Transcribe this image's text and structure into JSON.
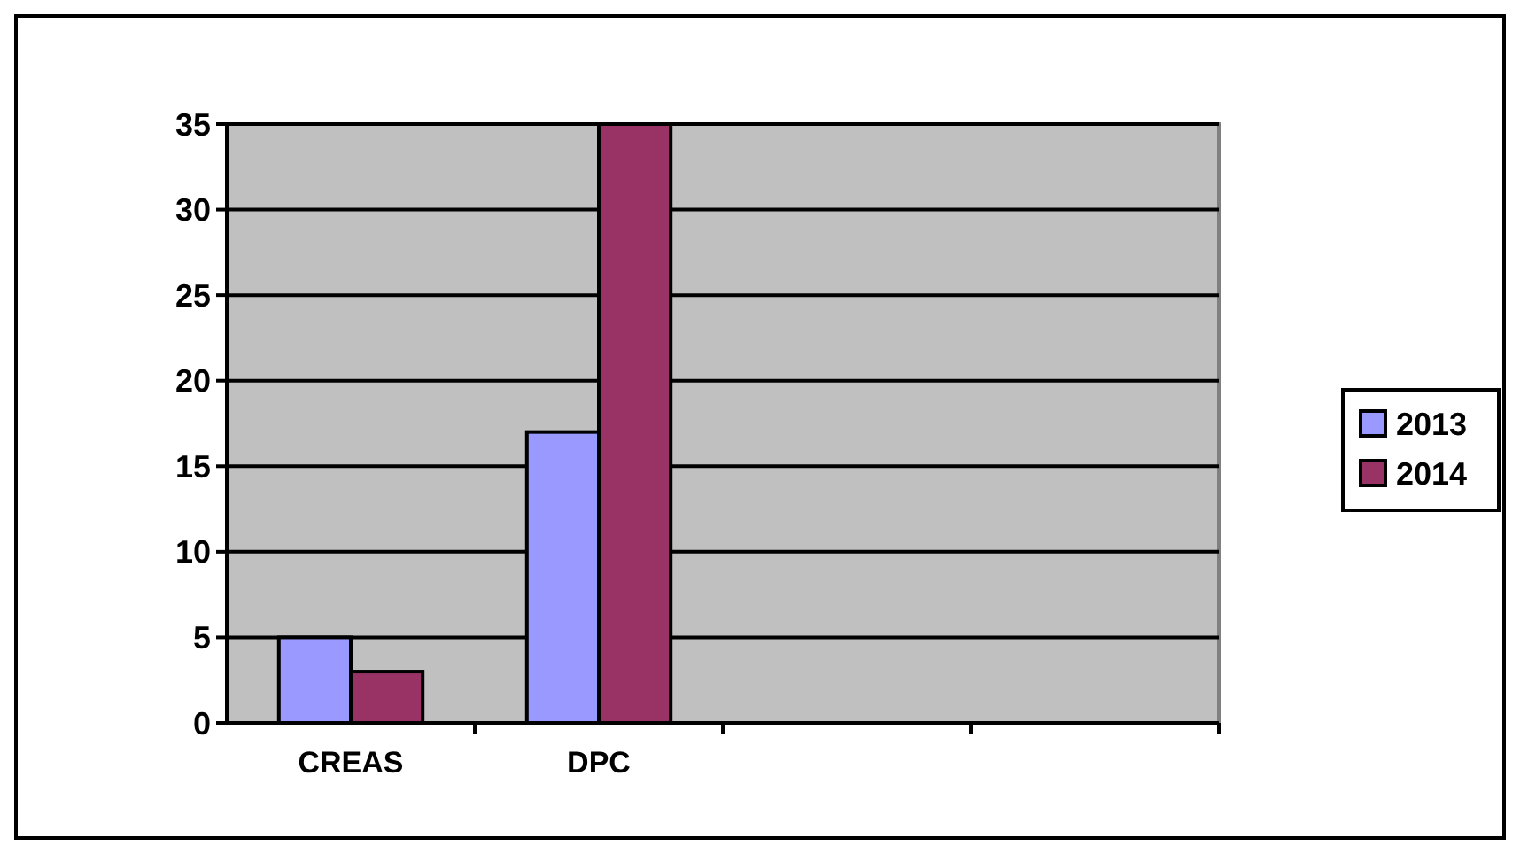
{
  "chart_data": {
    "type": "bar",
    "categories": [
      "CREAS",
      "DPC",
      null,
      null
    ],
    "series": [
      {
        "name": "2013",
        "color": "#9999ff",
        "values": [
          5,
          17,
          null,
          null
        ]
      },
      {
        "name": "2014",
        "color": "#993366",
        "values": [
          3,
          35,
          null,
          null
        ]
      }
    ],
    "ylim": [
      0,
      35
    ],
    "yticks": [
      0,
      5,
      10,
      15,
      20,
      25,
      30,
      35
    ],
    "grid": "y",
    "legend": "right"
  }
}
